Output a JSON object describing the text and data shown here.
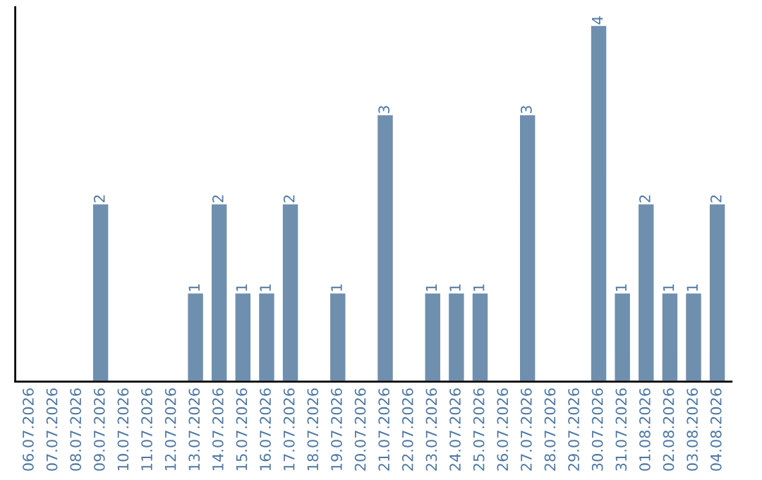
{
  "chart_data": {
    "type": "bar",
    "categories": [
      "06.07.2026",
      "07.07.2026",
      "08.07.2026",
      "09.07.2026",
      "10.07.2026",
      "11.07.2026",
      "12.07.2026",
      "13.07.2026",
      "14.07.2026",
      "15.07.2026",
      "16.07.2026",
      "17.07.2026",
      "18.07.2026",
      "19.07.2026",
      "20.07.2026",
      "21.07.2026",
      "22.07.2026",
      "23.07.2026",
      "24.07.2026",
      "25.07.2026",
      "26.07.2026",
      "27.07.2026",
      "28.07.2026",
      "29.07.2026",
      "30.07.2026",
      "31.07.2026",
      "01.08.2026",
      "02.08.2026",
      "03.08.2026",
      "04.08.2026"
    ],
    "values": [
      null,
      null,
      null,
      2,
      null,
      null,
      null,
      1,
      2,
      1,
      1,
      2,
      null,
      1,
      null,
      3,
      null,
      1,
      1,
      1,
      null,
      3,
      null,
      null,
      4,
      1,
      2,
      1,
      1,
      2
    ],
    "value_labels": [
      null,
      null,
      null,
      "2",
      null,
      null,
      null,
      "1",
      "2",
      "1",
      "1",
      "2",
      null,
      "1",
      null,
      "3",
      null,
      "1",
      "1",
      "1",
      null,
      "3",
      null,
      null,
      "4",
      "1",
      "2",
      "1",
      "1",
      "2"
    ],
    "color": "#6f8fae",
    "ylim": [
      0,
      4.2
    ],
    "tick_labels": "x",
    "grid": false,
    "legend": false
  }
}
